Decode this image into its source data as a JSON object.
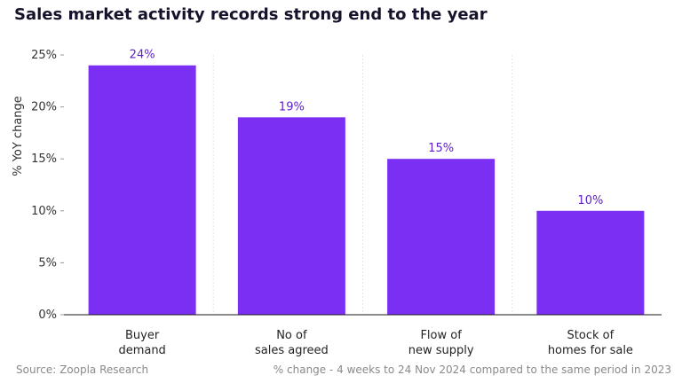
{
  "title": "Sales market activity records strong end to the year",
  "footer": {
    "source": "Source: Zoopla Research",
    "note": "% change - 4 weeks to 24 Nov 2024 compared to the same period in 2023"
  },
  "colors": {
    "bar": "#7b2ff2",
    "label": "#5b1fc7",
    "axis": "#1a1a1a",
    "grid": "#e6e6e6"
  },
  "chart_data": {
    "type": "bar",
    "categories": [
      [
        "Buyer",
        "demand"
      ],
      [
        "No of",
        "sales agreed"
      ],
      [
        "Flow of",
        "new supply"
      ],
      [
        "Stock of",
        "homes for sale"
      ]
    ],
    "values": [
      24,
      19,
      15,
      10
    ],
    "value_labels": [
      "24%",
      "19%",
      "15%",
      "10%"
    ],
    "ylabel": "% YoY change",
    "ylim": [
      0,
      25
    ],
    "yticks": [
      0,
      5,
      10,
      15,
      20,
      25
    ],
    "ytick_labels": [
      "0%",
      "5%",
      "10%",
      "15%",
      "20%",
      "25%"
    ],
    "grid": "vertical dotted"
  }
}
